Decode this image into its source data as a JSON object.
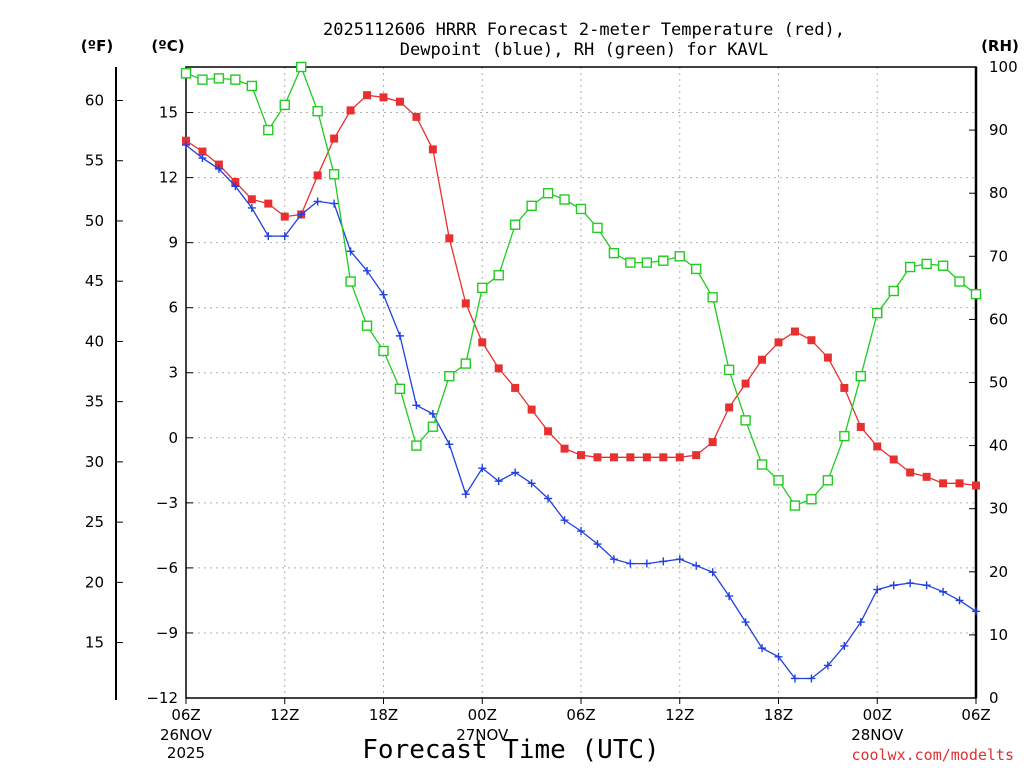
{
  "chart_data": {
    "type": "line",
    "title_line1": "2025112606 HRRR Forecast 2-meter Temperature (red),",
    "title_line2": "Dewpoint (blue), RH (green) for KAVL",
    "xlabel": "Forecast Time (UTC)",
    "credit": "coolwx.com/modelts",
    "units": {
      "fahrenheit": "(ºF)",
      "celsius": "(ºC)",
      "rh": "(RH)"
    },
    "x_range_hours": [
      0,
      48
    ],
    "x_ticks": [
      {
        "hour": 0,
        "label": "06Z"
      },
      {
        "hour": 6,
        "label": "12Z"
      },
      {
        "hour": 12,
        "label": "18Z"
      },
      {
        "hour": 18,
        "label": "00Z"
      },
      {
        "hour": 24,
        "label": "06Z"
      },
      {
        "hour": 30,
        "label": "12Z"
      },
      {
        "hour": 36,
        "label": "18Z"
      },
      {
        "hour": 42,
        "label": "00Z"
      },
      {
        "hour": 48,
        "label": "06Z"
      }
    ],
    "date_labels": [
      {
        "hour": 0,
        "line1": "26NOV",
        "line2": "2025"
      },
      {
        "hour": 18,
        "line1": "27NOV",
        "line2": ""
      },
      {
        "hour": 42,
        "line1": "28NOV",
        "line2": ""
      }
    ],
    "celsius_axis": {
      "range": [
        -12,
        17.1
      ],
      "ticks": [
        15,
        12,
        9,
        6,
        3,
        0,
        -3,
        -6,
        -9,
        -12
      ]
    },
    "fahrenheit_ticks": [
      60,
      55,
      50,
      45,
      40,
      35,
      30,
      25,
      20,
      15
    ],
    "rh_axis": {
      "range": [
        0,
        100
      ],
      "ticks": [
        100,
        90,
        80,
        70,
        60,
        50,
        40,
        30,
        20,
        10,
        0
      ]
    },
    "series": [
      {
        "name": "Temperature",
        "axis": "celsius",
        "color": "#e83030",
        "marker": "filled-square",
        "values": [
          13.7,
          13.2,
          12.6,
          11.8,
          11.0,
          10.8,
          10.2,
          10.3,
          12.1,
          13.8,
          15.1,
          15.8,
          15.7,
          15.5,
          14.8,
          13.3,
          9.2,
          6.2,
          4.4,
          3.2,
          2.3,
          1.3,
          0.3,
          -0.5,
          -0.8,
          -0.9,
          -0.9,
          -0.9,
          -0.9,
          -0.9,
          -0.9,
          -0.8,
          -0.2,
          1.4,
          2.5,
          3.6,
          4.4,
          4.9,
          4.5,
          3.7,
          2.3,
          0.5,
          -0.4,
          -1.0,
          -1.6,
          -1.8,
          -2.1,
          -2.1,
          -2.2
        ]
      },
      {
        "name": "Dewpoint",
        "axis": "celsius",
        "color": "#2040e0",
        "marker": "plus",
        "values": [
          13.5,
          12.9,
          12.4,
          11.6,
          10.6,
          9.3,
          9.3,
          10.3,
          10.9,
          10.8,
          8.6,
          7.7,
          6.6,
          4.7,
          1.5,
          1.1,
          -0.3,
          -2.6,
          -1.4,
          -2.0,
          -1.6,
          -2.1,
          -2.8,
          -3.8,
          -4.3,
          -4.9,
          -5.6,
          -5.8,
          -5.8,
          -5.7,
          -5.6,
          -5.9,
          -6.2,
          -7.3,
          -8.5,
          -9.7,
          -10.1,
          -11.1,
          -11.1,
          -10.5,
          -9.6,
          -8.5,
          -7.0,
          -6.8,
          -6.7,
          -6.8,
          -7.1,
          -7.5,
          -8.0
        ]
      },
      {
        "name": "RH",
        "axis": "rh",
        "color": "#20cc20",
        "marker": "open-square",
        "values": [
          99,
          98,
          98.2,
          98,
          97,
          90,
          94,
          100,
          93,
          83,
          66,
          59,
          55,
          49,
          40,
          43,
          51,
          53,
          65,
          67,
          75,
          78,
          80,
          79,
          77.5,
          74.5,
          70.5,
          69,
          69,
          69.3,
          70,
          68,
          63.5,
          52,
          44,
          37,
          34.5,
          30.5,
          31.5,
          34.5,
          41.5,
          51,
          61,
          64.5,
          68.3,
          68.8,
          68.5,
          66,
          64
        ]
      }
    ]
  }
}
